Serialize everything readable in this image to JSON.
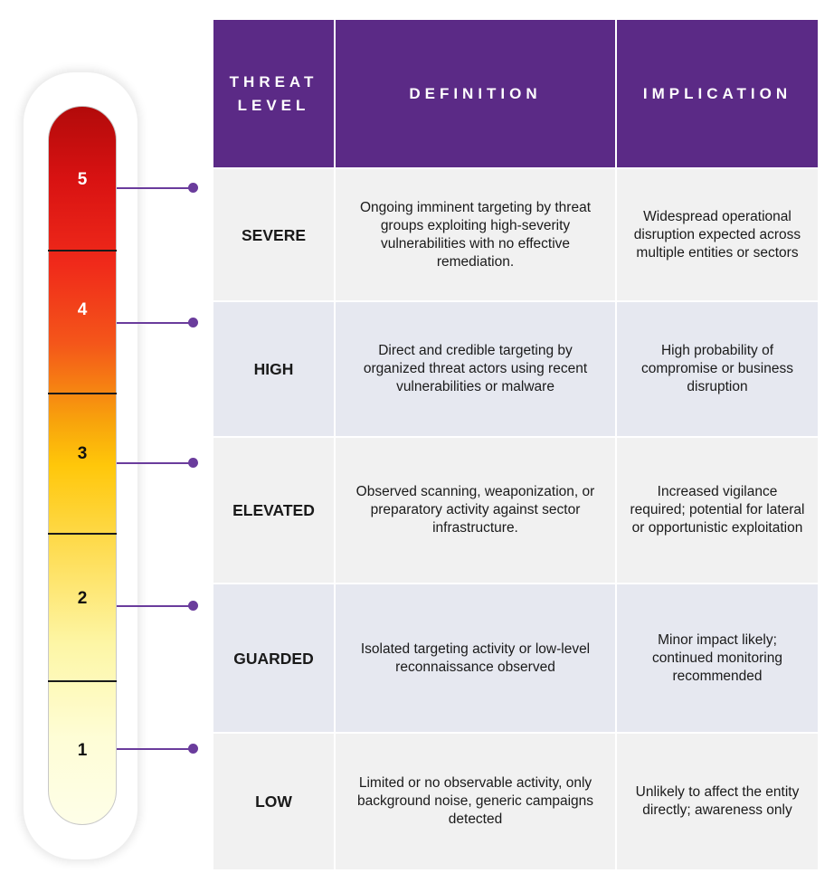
{
  "header": {
    "threat_level": "THREAT LEVEL",
    "definition": "DEFINITION",
    "implication": "IMPLICATION"
  },
  "scale": {
    "numbers": [
      "5",
      "4",
      "3",
      "2",
      "1"
    ]
  },
  "levels": [
    {
      "name": "SEVERE",
      "definition": "Ongoing imminent targeting by threat groups exploiting high-severity vulnerabilities with no effective remediation.",
      "implication": "Widespread operational disruption expected across multiple entities or sectors"
    },
    {
      "name": "HIGH",
      "definition": "Direct and credible targeting by organized threat actors using recent vulnerabilities or malware",
      "implication": "High probability of compromise or business disruption"
    },
    {
      "name": "ELEVATED",
      "definition": "Observed scanning, weaponization, or preparatory activity against sector infrastructure.",
      "implication": "Increased vigilance required; potential for lateral or opportunistic exploitation"
    },
    {
      "name": "GUARDED",
      "definition": "Isolated targeting activity or low-level reconnaissance observed",
      "implication": "Minor impact likely; continued monitoring recommended"
    },
    {
      "name": "LOW",
      "definition": "Limited or no observable activity, only background noise, generic campaigns detected",
      "implication": "Unlikely to affect the entity directly; awareness only"
    }
  ],
  "colors": {
    "header_bg": "#5b2a86",
    "connector": "#6a3c9c",
    "row_light": "#f1f1f1",
    "row_blue": "#e6e8f0"
  }
}
